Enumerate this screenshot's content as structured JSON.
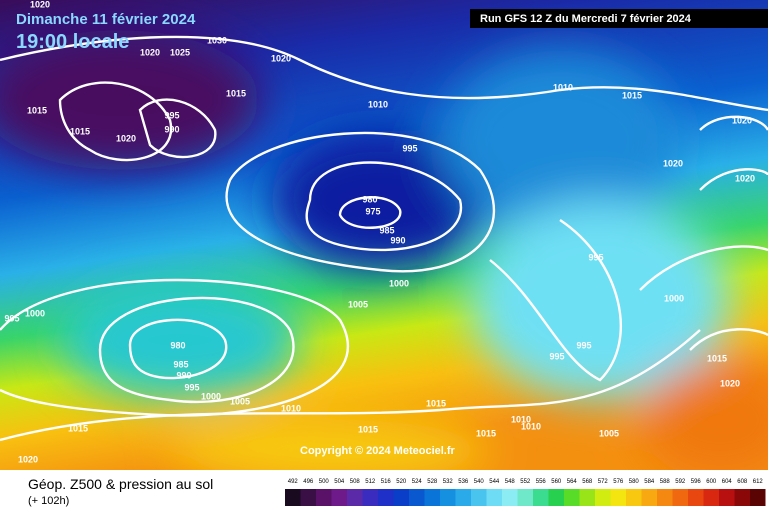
{
  "header": {
    "date": "Dimanche 11 février 2024",
    "time": "19:00 locale",
    "run": "Run GFS 12 Z du Mercredi 7 février 2024"
  },
  "copyright": "Copyright © 2024 Meteociel.fr",
  "footer": {
    "title": "Géop. Z500 & pression au sol",
    "lead": "(+ 102h)"
  },
  "isobar_labels": [
    "1020",
    "1030",
    "1020",
    "1025",
    "1020",
    "1015",
    "1010",
    "1010",
    "1015",
    "1020",
    "1015",
    "1015",
    "1020",
    "995",
    "990",
    "995",
    "1020",
    "1020",
    "980",
    "975",
    "985",
    "990",
    "995",
    "1000",
    "1000",
    "1005",
    "995",
    "1000",
    "980",
    "985",
    "990",
    "995",
    "1000",
    "1005",
    "1010",
    "995",
    "995",
    "1015",
    "1020",
    "1015",
    "1010",
    "1010",
    "1015",
    "1015",
    "1015",
    "1005",
    "1020"
  ],
  "scale": {
    "values": [
      492,
      496,
      500,
      504,
      508,
      512,
      516,
      520,
      524,
      528,
      532,
      536,
      540,
      544,
      548,
      552,
      556,
      560,
      564,
      568,
      572,
      576,
      580,
      584,
      588,
      592,
      596,
      600,
      604,
      608,
      612
    ],
    "colors": [
      "#1a0a1f",
      "#3a0f45",
      "#5a1268",
      "#6e1a8a",
      "#5a2aa8",
      "#3b2cc0",
      "#1f30c8",
      "#0a3ec8",
      "#0a58d0",
      "#0a74d8",
      "#1590e0",
      "#2aaae8",
      "#48c4ef",
      "#6edcf4",
      "#8cecf4",
      "#6ee8c8",
      "#3cdc90",
      "#28d050",
      "#58dc28",
      "#98e418",
      "#d0ec10",
      "#f4e410",
      "#f8c810",
      "#f8a810",
      "#f48810",
      "#f06810",
      "#e84810",
      "#d82810",
      "#b81010",
      "#8a0808",
      "#5a0404"
    ]
  }
}
